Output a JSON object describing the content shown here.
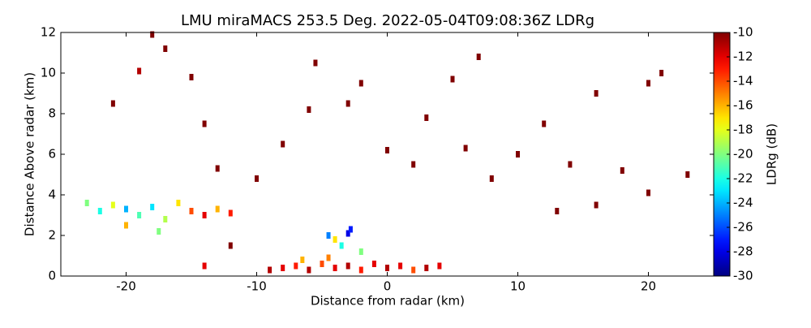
{
  "chart_data": {
    "type": "scatter",
    "title": "LMU miraMACS 253.5 Deg. 2022-05-04T09:08:36Z  LDRg",
    "xlabel": "Distance from radar (km)",
    "ylabel": "Distance Above radar  (km)",
    "colorbar_label": "LDRg (dB)",
    "colormap": "jet",
    "xlim": [
      -25,
      25
    ],
    "ylim": [
      0,
      12
    ],
    "xticks": [
      -20,
      -10,
      0,
      10,
      20
    ],
    "yticks": [
      0,
      2,
      4,
      6,
      8,
      10,
      12
    ],
    "clim": [
      -30,
      -10
    ],
    "cticks": [
      -30,
      -28,
      -26,
      -24,
      -22,
      -20,
      -18,
      -16,
      -14,
      -12,
      -10
    ],
    "x": [
      -9,
      -8,
      -7,
      -6,
      -5,
      -4,
      -3,
      -2,
      -1,
      0,
      1,
      2,
      3,
      4,
      -6.5,
      -4.5,
      -23,
      -22,
      -21,
      -20,
      -19,
      -18,
      -17,
      -16,
      -15,
      -14,
      -13,
      -12,
      -17.5,
      -20,
      -3,
      -2.8,
      -4.5,
      -3.5,
      -2,
      -4,
      -18,
      -17,
      -19,
      -21,
      -15,
      -14,
      -13,
      -10,
      -8,
      -6,
      -5.5,
      -3,
      -2,
      0,
      2,
      3,
      5,
      7,
      6,
      8,
      10,
      12,
      14,
      16,
      18,
      20,
      21,
      23,
      16,
      13,
      20,
      -12,
      -14
    ],
    "y": [
      0.3,
      0.4,
      0.5,
      0.3,
      0.6,
      0.4,
      0.5,
      0.3,
      0.6,
      0.4,
      0.5,
      0.3,
      0.4,
      0.5,
      0.8,
      0.9,
      3.6,
      3.2,
      3.5,
      3.3,
      3.0,
      3.4,
      2.8,
      3.6,
      3.2,
      3.0,
      3.3,
      3.1,
      2.2,
      2.5,
      2.1,
      2.3,
      2.0,
      1.5,
      1.2,
      1.8,
      11.9,
      11.2,
      10.1,
      8.5,
      9.8,
      7.5,
      5.3,
      4.8,
      6.5,
      8.2,
      10.5,
      8.5,
      9.5,
      6.2,
      5.5,
      7.8,
      9.7,
      10.8,
      6.3,
      4.8,
      6.0,
      7.5,
      5.5,
      9.0,
      5.2,
      9.5,
      10.0,
      5.0,
      3.5,
      3.2,
      4.1,
      1.5,
      0.5
    ],
    "values": [
      -11,
      -12,
      -13,
      -11,
      -14,
      -12,
      -11,
      -13,
      -12,
      -11,
      -12,
      -14,
      -11,
      -12,
      -16,
      -15,
      -20,
      -22,
      -18,
      -24,
      -21,
      -23,
      -19,
      -17,
      -14,
      -12,
      -16,
      -13,
      -20,
      -16,
      -28,
      -27,
      -25,
      -22,
      -20,
      -17,
      -10,
      -10,
      -11,
      -10,
      -10,
      -10,
      -10,
      -10,
      -10,
      -10,
      -10,
      -10,
      -10,
      -10,
      -10,
      -10,
      -10,
      -10,
      -10,
      -10,
      -10,
      -10,
      -10,
      -10,
      -10,
      -10,
      -10,
      -10,
      -10,
      -10,
      -10,
      -10,
      -12
    ]
  }
}
